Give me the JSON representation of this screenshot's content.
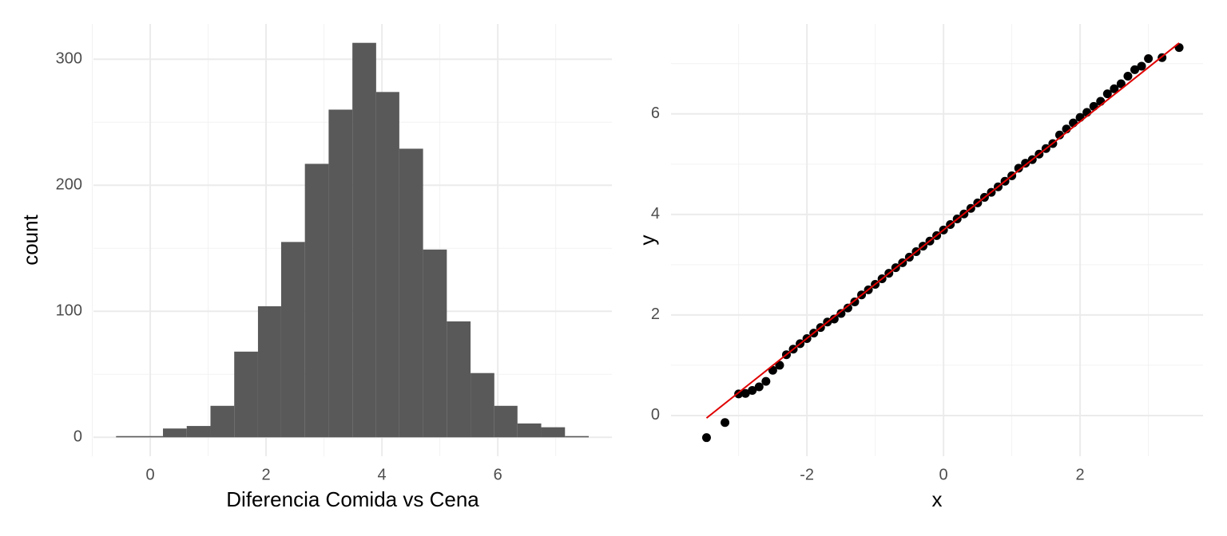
{
  "chart_data": [
    {
      "type": "histogram",
      "xlabel": "Diferencia Comida vs Cena",
      "ylabel": "count",
      "color": "#595959",
      "bins": [
        -0.59,
        -0.18,
        0.22,
        0.63,
        1.04,
        1.45,
        1.86,
        2.26,
        2.67,
        3.08,
        3.49,
        3.9,
        4.3,
        4.71,
        5.12,
        5.53,
        5.94,
        6.34,
        6.75,
        7.16,
        7.57
      ],
      "values": [
        1,
        1,
        7,
        9,
        25,
        68,
        104,
        155,
        217,
        260,
        313,
        274,
        229,
        149,
        92,
        51,
        25,
        11,
        8,
        1
      ],
      "xlim": [
        -0.98,
        7.97
      ],
      "ylim": [
        -15,
        328
      ],
      "xticks": [
        0,
        2,
        4,
        6
      ],
      "yticks": [
        0,
        100,
        200,
        300
      ],
      "xminor": [
        -1,
        1,
        3,
        5,
        7
      ],
      "yminor": [
        50,
        150,
        250
      ],
      "grid": true
    },
    {
      "type": "scatter",
      "xlabel": "x",
      "ylabel": "y",
      "color": "#000000",
      "x": [
        -3.47,
        -3.2,
        -3.0,
        -2.9,
        -2.8,
        -2.7,
        -2.6,
        -2.5,
        -2.4,
        -2.3,
        -2.2,
        -2.1,
        -2.0,
        -1.9,
        -1.8,
        -1.7,
        -1.6,
        -1.5,
        -1.4,
        -1.3,
        -1.2,
        -1.1,
        -1.0,
        -0.9,
        -0.8,
        -0.7,
        -0.6,
        -0.5,
        -0.4,
        -0.3,
        -0.2,
        -0.1,
        0,
        0.1,
        0.2,
        0.3,
        0.4,
        0.5,
        0.6,
        0.7,
        0.8,
        0.9,
        1.0,
        1.1,
        1.2,
        1.3,
        1.4,
        1.5,
        1.6,
        1.7,
        1.8,
        1.9,
        2.0,
        2.1,
        2.2,
        2.3,
        2.4,
        2.5,
        2.6,
        2.7,
        2.8,
        2.9,
        3.0,
        3.2,
        3.45
      ],
      "y": [
        -0.44,
        -0.14,
        0.43,
        0.44,
        0.5,
        0.57,
        0.68,
        0.9,
        1.0,
        1.21,
        1.32,
        1.43,
        1.53,
        1.64,
        1.75,
        1.86,
        1.92,
        2.03,
        2.14,
        2.26,
        2.4,
        2.5,
        2.61,
        2.72,
        2.83,
        2.94,
        3.04,
        3.15,
        3.26,
        3.37,
        3.47,
        3.58,
        3.69,
        3.8,
        3.91,
        4.01,
        4.12,
        4.23,
        4.34,
        4.44,
        4.55,
        4.66,
        4.77,
        4.92,
        5.02,
        5.09,
        5.2,
        5.31,
        5.41,
        5.58,
        5.7,
        5.82,
        5.93,
        6.03,
        6.15,
        6.25,
        6.4,
        6.5,
        6.6,
        6.75,
        6.88,
        6.95,
        7.1,
        7.12,
        7.32
      ],
      "reference_line": {
        "x": [
          -3.47,
          3.45
        ],
        "y": [
          -0.05,
          7.41
        ],
        "color": "#e00000"
      },
      "xlim": [
        -3.99,
        3.8
      ],
      "ylim": [
        -0.81,
        7.79
      ],
      "xticks": [
        -2,
        0,
        2
      ],
      "yticks": [
        0,
        2,
        4,
        6
      ],
      "xminor": [
        -3,
        -1,
        1,
        3
      ],
      "yminor": [
        1,
        3,
        5,
        7
      ],
      "grid": true
    }
  ]
}
